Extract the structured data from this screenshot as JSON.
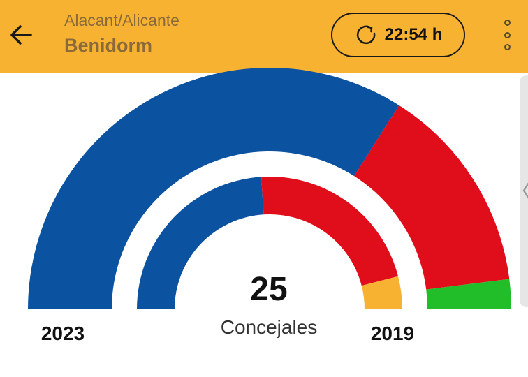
{
  "header": {
    "back_icon": "arrow-left-icon",
    "subtitle": "Alacant/Alicante",
    "title": "Benidorm",
    "refresh_icon": "refresh-icon",
    "refresh_time": "22:54 h",
    "more_icon": "more-vertical-icon"
  },
  "colors": {
    "header_bg": "#f8b232",
    "blue": "#0b52a0",
    "red": "#e00d1b",
    "green": "#21be2a",
    "orange": "#f8b232"
  },
  "chart_data": {
    "type": "pie",
    "center_value": "25",
    "center_label": "Concejales",
    "rings": [
      {
        "name": "2023",
        "segments": [
          {
            "value": 17,
            "color": "#0b52a0"
          },
          {
            "value": 7,
            "color": "#e00d1b"
          },
          {
            "value": 1,
            "color": "#21be2a"
          }
        ]
      },
      {
        "name": "2019",
        "segments": [
          {
            "value": 12,
            "color": "#0b52a0"
          },
          {
            "value": 11,
            "color": "#e00d1b"
          },
          {
            "value": 2,
            "color": "#f8b232"
          }
        ]
      }
    ]
  }
}
